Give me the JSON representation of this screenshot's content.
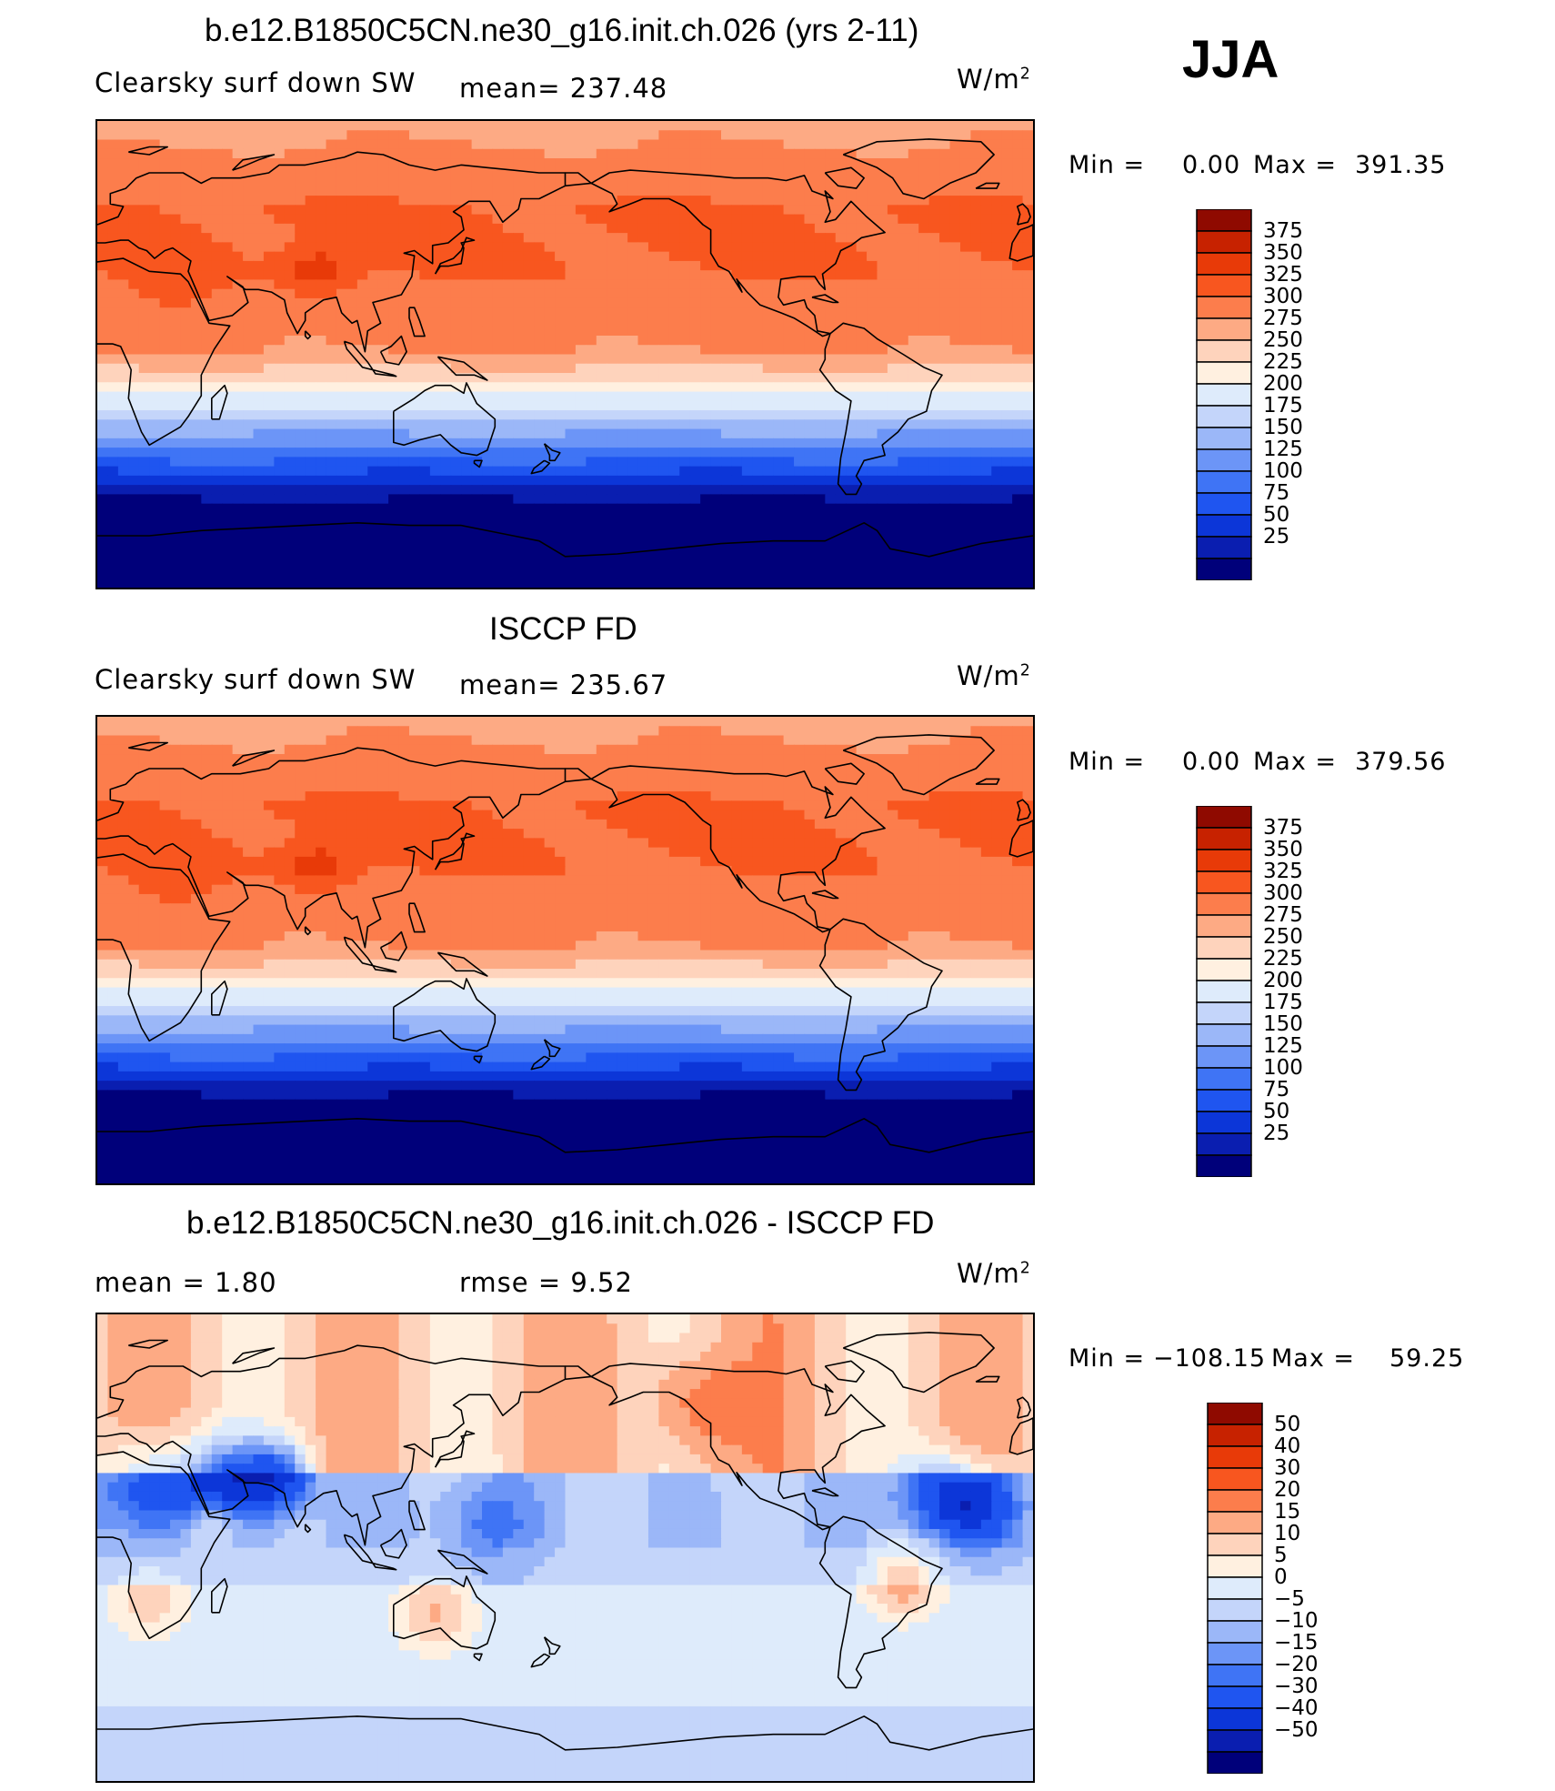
{
  "season": "JJA",
  "colors": {
    "field_palette": [
      "#00007a",
      "#0a1eb0",
      "#0c36d8",
      "#1f55f0",
      "#3f74f5",
      "#6c95f7",
      "#9bb7f8",
      "#c4d5fa",
      "#deebfb",
      "#fff0e0",
      "#fed3bc",
      "#fdaa84",
      "#fc7d4c",
      "#f8561f",
      "#e83a08",
      "#c72200",
      "#8f0a00"
    ],
    "diff_palette": [
      "#00007a",
      "#0a1eb0",
      "#0c36d8",
      "#1f55f0",
      "#3f74f5",
      "#6c95f7",
      "#9bb7f8",
      "#c4d5fa",
      "#deebfb",
      "#fff0e0",
      "#fed3bc",
      "#fdaa84",
      "#fc7d4c",
      "#f8561f",
      "#e83a08",
      "#c72200",
      "#8f0a00"
    ]
  },
  "panels": [
    {
      "title": "b.e12.B1850C5CN.ne30_g16.init.ch.026 (yrs 2-11)",
      "variable": "Clearsky surf down SW",
      "stat": "mean=  237.48",
      "units_base": "W/m",
      "units_exp": "2",
      "min_label": "Min  =",
      "min_value": "0.00",
      "max_label": "Max  =",
      "max_value": "391.35",
      "colorbar_labels": [
        "375",
        "350",
        "325",
        "300",
        "275",
        "250",
        "225",
        "200",
        "175",
        "150",
        "125",
        "100",
        "75",
        "50",
        "25"
      ]
    },
    {
      "title": "ISCCP FD",
      "variable": "Clearsky surf down SW",
      "stat": "mean=  235.67",
      "units_base": "W/m",
      "units_exp": "2",
      "min_label": "Min  =",
      "min_value": "0.00",
      "max_label": "Max  =",
      "max_value": "379.56",
      "colorbar_labels": [
        "375",
        "350",
        "325",
        "300",
        "275",
        "250",
        "225",
        "200",
        "175",
        "150",
        "125",
        "100",
        "75",
        "50",
        "25"
      ]
    },
    {
      "title": "b.e12.B1850C5CN.ne30_g16.init.ch.026 - ISCCP FD",
      "variable": "mean  =     1.80",
      "stat": "rmse  =     9.52",
      "units_base": "W/m",
      "units_exp": "2",
      "min_label": "Min  =",
      "min_value": "−108.15",
      "max_label": "Max  =",
      "max_value": "59.25",
      "colorbar_labels": [
        "50",
        "40",
        "30",
        "20",
        "15",
        "10",
        "5",
        "0",
        "−5",
        "−10",
        "−15",
        "−20",
        "−30",
        "−40",
        "−50"
      ]
    }
  ]
}
